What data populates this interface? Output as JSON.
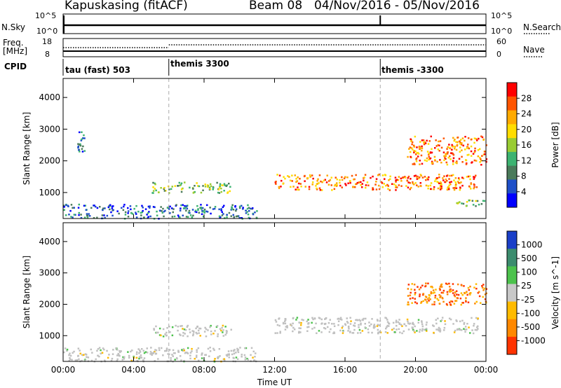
{
  "header": {
    "station": "Kapuskasing (fitACF)",
    "beam": "Beam 08",
    "dates": "04/Nov/2016 - 05/Nov/2016"
  },
  "noise_panel": {
    "left_label": "N.Sky",
    "left_ticks": [
      "10^5",
      "10^0"
    ],
    "right_ticks": [
      "10^5",
      "10^0"
    ],
    "right_label": "N.Search"
  },
  "freq_panel": {
    "left_label_1": "Freq.",
    "left_label_2": "[MHz]",
    "left_ticks": [
      "18",
      "8"
    ],
    "right_ticks": [
      "60",
      "0"
    ],
    "right_label": "Nave"
  },
  "cpid": {
    "label": "CPID",
    "programs": [
      {
        "text": "tau (fast) 503",
        "start_hour": 0
      },
      {
        "text": "themis 3300",
        "start_hour": 6
      },
      {
        "text": "themis -3300",
        "start_hour": 18
      }
    ]
  },
  "power_colorbar": {
    "label": "Power [dB]",
    "ticks": [
      "28",
      "24",
      "20",
      "16",
      "12",
      "8",
      "4"
    ],
    "colors": [
      "#ff0000",
      "#ff5500",
      "#ffaa00",
      "#ffdd00",
      "#99cc33",
      "#3cb371",
      "#4a7a5a",
      "#1e4fc8",
      "#0000ff"
    ]
  },
  "velocity_colorbar": {
    "label": "Velocity [m s^-1]",
    "ticks": [
      "1000",
      "500",
      "100",
      "25",
      "-25",
      "-100",
      "-500",
      "-1000"
    ],
    "colors": [
      "#1a3fc8",
      "#3c8c6e",
      "#4cc24c",
      "#c8c8c8",
      "#ffbb00",
      "#ff8800",
      "#ff3300"
    ],
    "ground_scatter_color": "#c0c0c0"
  },
  "chart_data": [
    {
      "type": "heatmap",
      "title": "Power",
      "ylabel": "Slant Range [km]",
      "xlabel": "Time UT",
      "x_ticks": [
        "00:00",
        "04:00",
        "08:00",
        "12:00",
        "16:00",
        "20:00",
        "00:00"
      ],
      "xlim_hours": [
        0,
        24
      ],
      "y_ticks": [
        1000,
        2000,
        3000,
        4000
      ],
      "ylim": [
        180,
        4600
      ],
      "regions": [
        {
          "t0": 0.0,
          "t1": 11.0,
          "r0": 200,
          "r1": 650,
          "level": "low"
        },
        {
          "t0": 0.8,
          "t1": 1.2,
          "r0": 2300,
          "r1": 2950,
          "level": "low"
        },
        {
          "t0": 5.0,
          "t1": 9.5,
          "r0": 1000,
          "r1": 1350,
          "level": "mid"
        },
        {
          "t0": 12.0,
          "t1": 23.5,
          "r0": 1100,
          "r1": 1600,
          "level": "high"
        },
        {
          "t0": 19.5,
          "t1": 24.0,
          "r0": 1900,
          "r1": 2800,
          "level": "high"
        },
        {
          "t0": 22.0,
          "t1": 24.0,
          "r0": 600,
          "r1": 800,
          "level": "mid"
        }
      ]
    },
    {
      "type": "heatmap",
      "title": "Velocity",
      "ylabel": "Slant Range [km]",
      "xlabel": "Time UT",
      "x_ticks": [
        "00:00",
        "04:00",
        "08:00",
        "12:00",
        "16:00",
        "20:00",
        "00:00"
      ],
      "xlim_hours": [
        0,
        24
      ],
      "y_ticks": [
        1000,
        2000,
        3000,
        4000
      ],
      "ylim": [
        180,
        4600
      ],
      "regions": [
        {
          "t0": 0.0,
          "t1": 11.0,
          "r0": 200,
          "r1": 650,
          "class": "ground"
        },
        {
          "t0": 5.0,
          "t1": 9.5,
          "r0": 1000,
          "r1": 1350,
          "class": "ground"
        },
        {
          "t0": 12.0,
          "t1": 23.5,
          "r0": 1100,
          "r1": 1600,
          "class": "ground"
        },
        {
          "t0": 19.5,
          "t1": 24.0,
          "r0": 2000,
          "r1": 2700,
          "class": "negative"
        }
      ]
    }
  ]
}
